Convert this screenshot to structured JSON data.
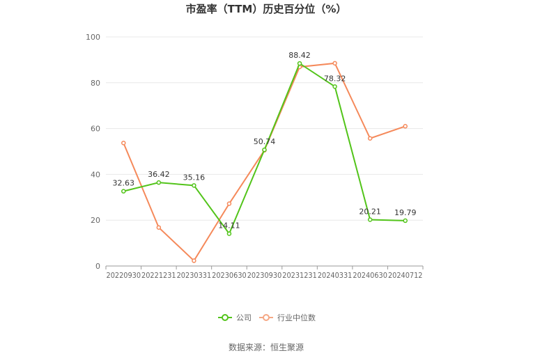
{
  "chart_data": {
    "type": "line",
    "title": "市盈率（TTM）历史百分位（%）",
    "categories": [
      "20220930",
      "20221231",
      "20230331",
      "20230630",
      "20230930",
      "20231231",
      "20240331",
      "20240630",
      "20240712"
    ],
    "ylim": [
      0,
      100
    ],
    "yticks": [
      0,
      20,
      40,
      60,
      80,
      100
    ],
    "grid": true,
    "legend_position": "bottom",
    "series": [
      {
        "name": "公司",
        "color": "#52c41a",
        "values": [
          32.63,
          36.42,
          35.16,
          14.11,
          50.74,
          88.42,
          78.32,
          20.21,
          19.79
        ],
        "labels": [
          "32.63",
          "36.42",
          "35.16",
          "14.11",
          "50.74",
          "88.42",
          "78.32",
          "20.21",
          "19.79"
        ]
      },
      {
        "name": "行业中位数",
        "color": "#f5895a",
        "values": [
          53.7,
          16.8,
          2.3,
          27.2,
          50.5,
          86.9,
          88.5,
          55.7,
          61.0
        ]
      }
    ],
    "source": "数据来源：恒生聚源"
  }
}
